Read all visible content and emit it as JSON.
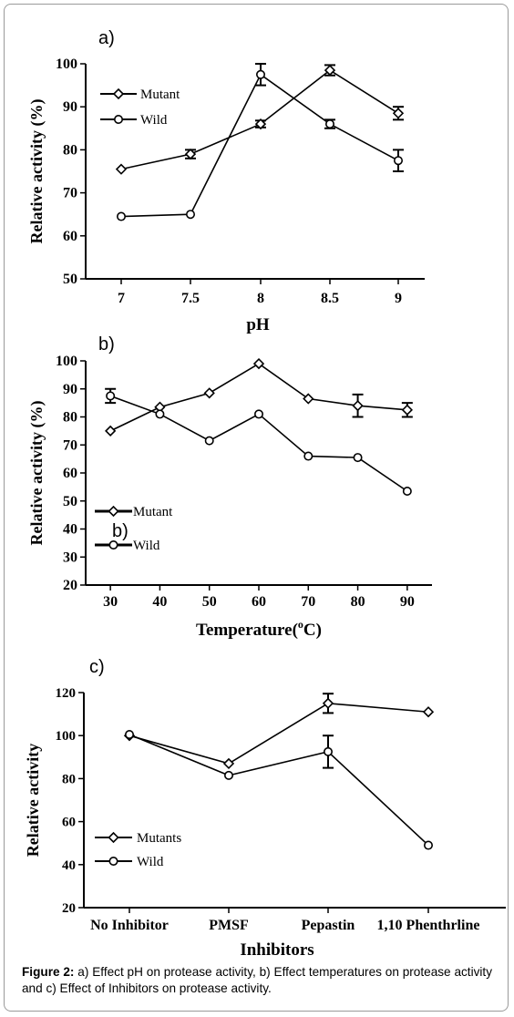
{
  "chart_data": [
    {
      "type": "line",
      "panel_label": "a)",
      "xlabel": "pH",
      "ylabel": "Relative activity (%)",
      "categories": [
        "7",
        "7.5",
        "8",
        "8.5",
        "9"
      ],
      "ylim": [
        50,
        100
      ],
      "yticks": [
        50,
        60,
        70,
        80,
        90,
        100
      ],
      "legend_position": "top-left",
      "series": [
        {
          "name": "Mutant",
          "marker": "diamond",
          "values": [
            75.5,
            79,
            86,
            98.5,
            88.5
          ],
          "errors": [
            0,
            1,
            0.8,
            1.2,
            1.5
          ]
        },
        {
          "name": "Wild",
          "marker": "circle",
          "values": [
            64.5,
            65,
            97.5,
            86,
            77.5
          ],
          "errors": [
            0,
            0,
            2.5,
            1,
            2.5
          ]
        }
      ]
    },
    {
      "type": "line",
      "panel_label": "b)",
      "overlay_label": "b)",
      "xlabel": "Temperature(",
      "xlabel_unit": "C)",
      "xlabel_superscript": "o",
      "ylabel": "Relative activity (%)",
      "x": [
        30,
        40,
        50,
        60,
        70,
        80,
        90
      ],
      "xlim": [
        25,
        95
      ],
      "xticks": [
        30,
        40,
        50,
        60,
        70,
        80,
        90
      ],
      "ylim": [
        20,
        100
      ],
      "yticks": [
        20,
        30,
        40,
        50,
        60,
        70,
        80,
        90,
        100
      ],
      "legend_position": "bottom-left",
      "series": [
        {
          "name": "Mutant",
          "marker": "diamond",
          "values": [
            75,
            83.5,
            88.5,
            99,
            86.5,
            84,
            82.5
          ],
          "errors": [
            0,
            0,
            0,
            0,
            0,
            4,
            2.5
          ]
        },
        {
          "name": "Wild",
          "marker": "circle",
          "values": [
            87.5,
            81,
            71.5,
            81,
            66,
            65.5,
            53.5
          ],
          "errors": [
            2.5,
            0,
            0,
            0,
            0,
            0,
            0
          ]
        }
      ]
    },
    {
      "type": "line",
      "panel_label": "c)",
      "xlabel": "Inhibitors",
      "ylabel": "Relative activity",
      "categories": [
        "No Inhibitor",
        "PMSF",
        "Pepastin",
        "1,10 Phenthrline"
      ],
      "ylim": [
        20,
        120
      ],
      "yticks": [
        20,
        40,
        60,
        80,
        100,
        120
      ],
      "legend_position": "bottom-left",
      "series": [
        {
          "name": "Mutants",
          "marker": "diamond",
          "values": [
            100,
            87,
            115,
            111
          ],
          "errors": [
            0,
            0,
            4.5,
            0
          ]
        },
        {
          "name": "Wild",
          "marker": "circle",
          "values": [
            100.5,
            81.5,
            92.5,
            49
          ],
          "errors": [
            0,
            0,
            7.5,
            0
          ]
        }
      ]
    }
  ],
  "caption": {
    "label": "Figure 2:",
    "text": " a) Effect pH on protease activity, b) Effect temperatures on protease activity and c) Effect of Inhibitors on protease activity."
  }
}
